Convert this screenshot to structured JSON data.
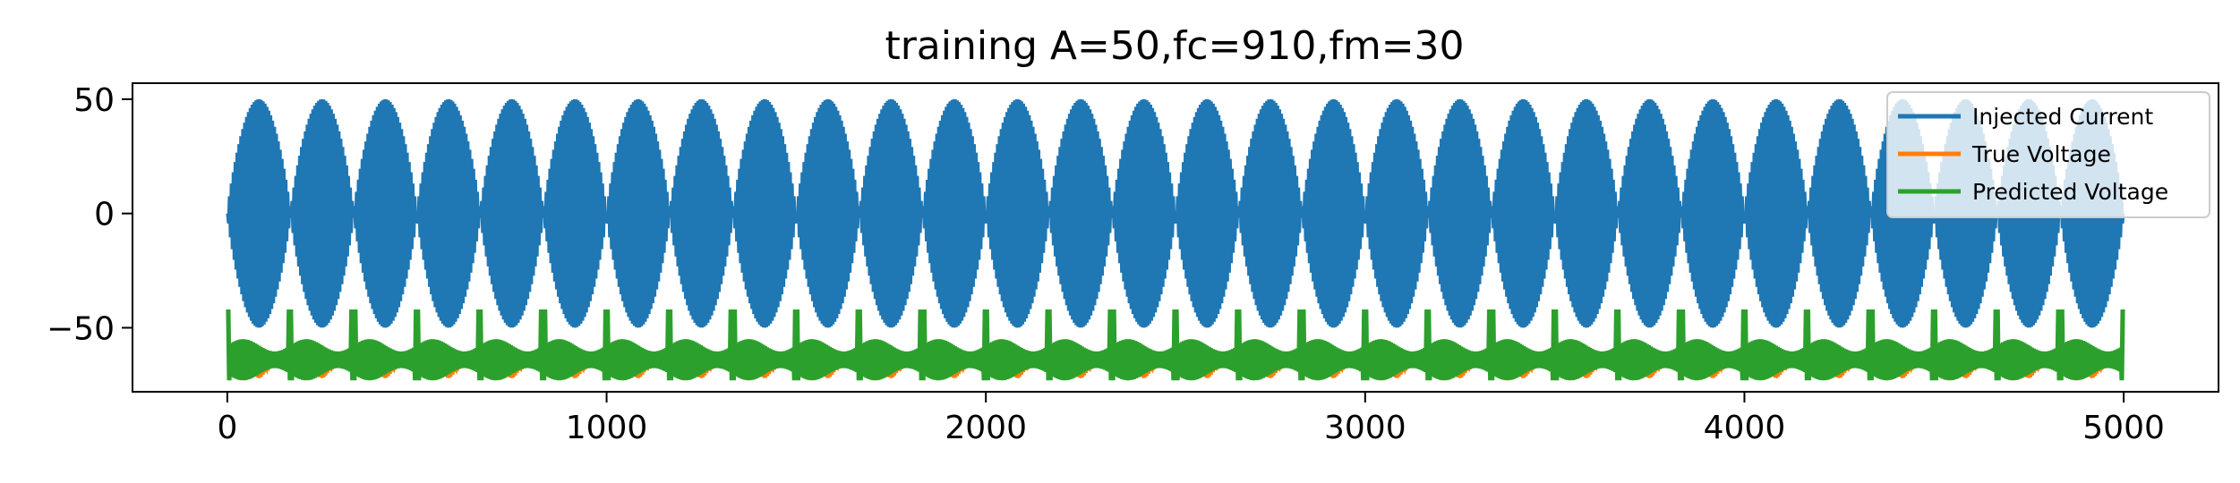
{
  "chart_data": {
    "type": "line",
    "title": "training A=50,fc=910,fm=30",
    "xlabel": "",
    "ylabel": "",
    "xlim": [
      -250,
      5250
    ],
    "ylim": [
      -78,
      57
    ],
    "xticks": [
      0,
      1000,
      2000,
      3000,
      4000,
      5000
    ],
    "xtick_labels": [
      "0",
      "1000",
      "2000",
      "3000",
      "4000",
      "5000"
    ],
    "yticks": [
      -50,
      0,
      50
    ],
    "ytick_labels": [
      "−50",
      "0",
      "50"
    ],
    "grid": false,
    "legend_position": "top-right",
    "n_cycles": 30,
    "x_range": [
      0,
      5000
    ],
    "series": [
      {
        "name": "Injected Current",
        "color": "#1f77b4",
        "amplitude": 50,
        "offset": 0,
        "shape": "AM burst, 30 envelope cycles over 0-5000"
      },
      {
        "name": "True Voltage",
        "color": "#ff7f0e",
        "base_range": [
          -72,
          -64
        ],
        "burst_peak": -72
      },
      {
        "name": "Predicted Voltage",
        "color": "#2ca02c",
        "base_range": [
          -73,
          -55
        ],
        "spike_top": -42
      }
    ]
  }
}
